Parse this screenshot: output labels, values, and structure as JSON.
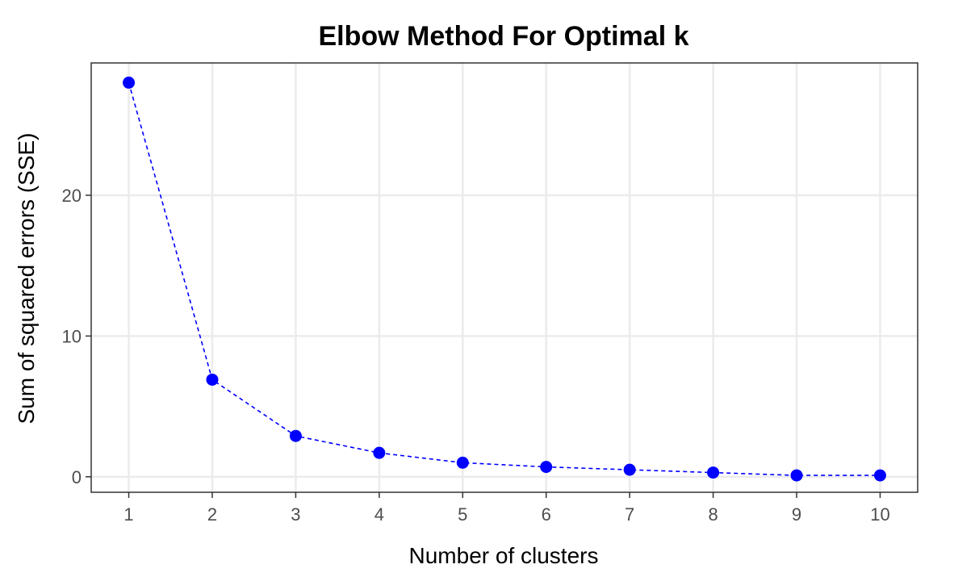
{
  "chart_data": {
    "type": "line",
    "title": "Elbow Method For Optimal k",
    "xlabel": "Number of clusters",
    "ylabel": "Sum of squared errors (SSE)",
    "x": [
      1,
      2,
      3,
      4,
      5,
      6,
      7,
      8,
      9,
      10
    ],
    "x_ticks": [
      "1",
      "2",
      "3",
      "4",
      "5",
      "6",
      "7",
      "8",
      "9",
      "10"
    ],
    "y_ticks": [
      0,
      10,
      20
    ],
    "y_tick_labels": [
      "0",
      "10",
      "20"
    ],
    "xlim": [
      0.55,
      10.45
    ],
    "ylim": [
      -1.1,
      29.4
    ],
    "grid": true,
    "series": [
      {
        "values": [
          28.0,
          6.9,
          2.9,
          1.7,
          1.0,
          0.7,
          0.5,
          0.3,
          0.1,
          0.1
        ],
        "color": "#0000ff",
        "line_style": "dashed",
        "marker": "circle"
      }
    ],
    "colors": {
      "grid": "#ebebeb",
      "border": "#333333",
      "tick_text": "#4d4d4d",
      "text": "#000000"
    }
  }
}
